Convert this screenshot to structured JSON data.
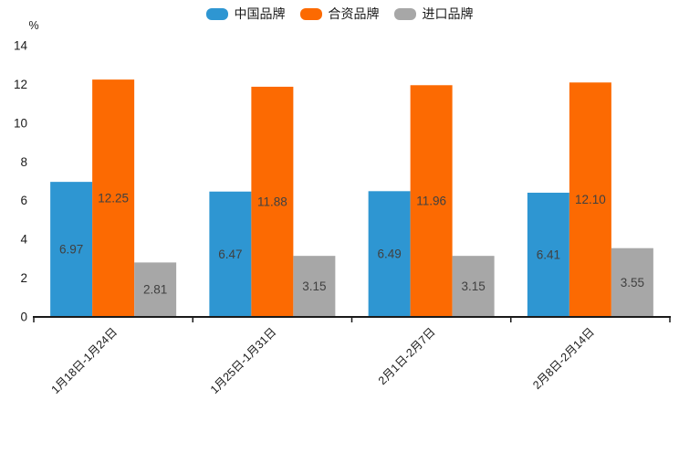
{
  "chart_data": {
    "type": "bar",
    "title": "",
    "ylabel": "%",
    "xlabel": "",
    "categories": [
      "1月18日-1月24日",
      "1月25日-1月31日",
      "2月1日-2月7日",
      "2月8日-2月14日"
    ],
    "series": [
      {
        "name": "中国品牌",
        "color": "#2e96d2",
        "values": [
          6.97,
          6.47,
          6.49,
          6.41
        ],
        "value_labels": [
          "6.97",
          "6.47",
          "6.49",
          "6.41"
        ]
      },
      {
        "name": "合资品牌",
        "color": "#fc6a02",
        "values": [
          12.25,
          11.88,
          11.96,
          12.1
        ],
        "value_labels": [
          "12.25",
          "11.88",
          "11.96",
          "12.10"
        ]
      },
      {
        "name": "进口品牌",
        "color": "#a7a7a7",
        "values": [
          2.81,
          3.15,
          3.15,
          3.55
        ],
        "value_labels": [
          "2.81",
          "3.15",
          "3.15",
          "3.55"
        ]
      }
    ],
    "ylim": [
      0,
      14
    ],
    "yticks": [
      0,
      2,
      4,
      6,
      8,
      10,
      12,
      14
    ],
    "grid": false,
    "legend_position": "top-center",
    "data_labels": "inside-center",
    "xtick_rotation": 45,
    "colors": {
      "axis_line": "#1a1a1a",
      "tick_label": "#1a1a1a",
      "value_label": "#404040",
      "background": "#ffffff"
    }
  }
}
